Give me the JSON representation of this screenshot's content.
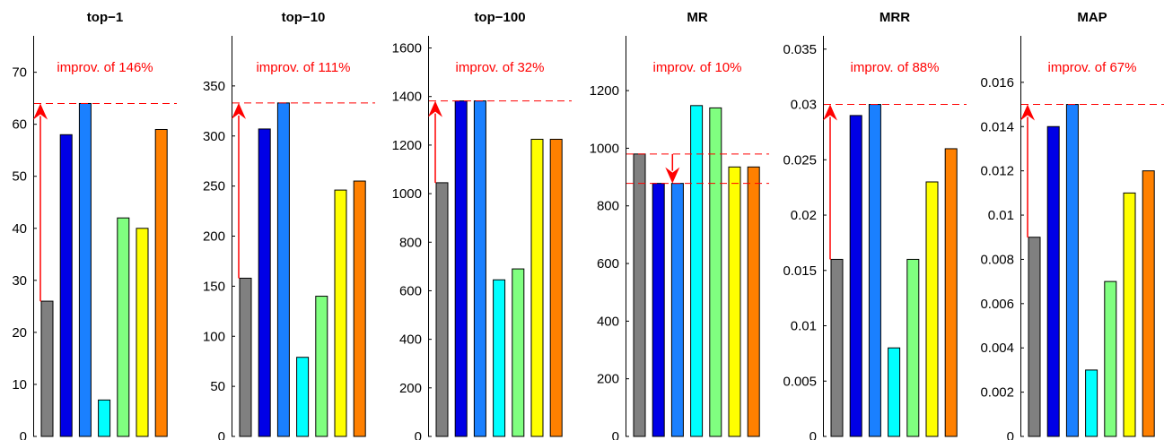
{
  "colors": {
    "bars": [
      "#808080",
      "#0000e6",
      "#1a80ff",
      "#00ffff",
      "#80ff80",
      "#ffff00",
      "#ff8000"
    ],
    "annotation": "#ff0000"
  },
  "chart_data": [
    {
      "type": "bar",
      "title": "top−1",
      "values": [
        26,
        58,
        64,
        7,
        42,
        40,
        59
      ],
      "ylim": [
        0,
        77
      ],
      "yticks": [
        0,
        10,
        20,
        30,
        40,
        50,
        60,
        70
      ],
      "ytick_labels": [
        "0",
        "10",
        "20",
        "30",
        "40",
        "50",
        "60",
        "70"
      ],
      "annotation": "improv. of 146%",
      "reference_lines": [
        64
      ],
      "arrow": {
        "from": 26,
        "to": 64,
        "bar": 0
      }
    },
    {
      "type": "bar",
      "title": "top−10",
      "values": [
        158,
        307,
        333,
        79,
        140,
        246,
        255
      ],
      "ylim": [
        0,
        400
      ],
      "yticks": [
        0,
        50,
        100,
        150,
        200,
        250,
        300,
        350
      ],
      "ytick_labels": [
        "0",
        "50",
        "100",
        "150",
        "200",
        "250",
        "300",
        "350"
      ],
      "annotation": "improv. of 111%",
      "reference_lines": [
        333
      ],
      "arrow": {
        "from": 158,
        "to": 333,
        "bar": 0
      }
    },
    {
      "type": "bar",
      "title": "top−100",
      "values": [
        1045,
        1382,
        1382,
        645,
        690,
        1224,
        1224
      ],
      "ylim": [
        0,
        1650
      ],
      "yticks": [
        0,
        200,
        400,
        600,
        800,
        1000,
        1200,
        1400,
        1600
      ],
      "ytick_labels": [
        "0",
        "200",
        "400",
        "600",
        "800",
        "1000",
        "1200",
        "1400",
        "1600"
      ],
      "annotation": "improv. of 32%",
      "reference_lines": [
        1382
      ],
      "arrow": {
        "from": 1045,
        "to": 1382,
        "bar": 0
      }
    },
    {
      "type": "bar",
      "title": "MR",
      "values": [
        980,
        878,
        878,
        1148,
        1140,
        935,
        935
      ],
      "ylim": [
        0,
        1390
      ],
      "yticks": [
        0,
        200,
        400,
        600,
        800,
        1000,
        1200
      ],
      "ytick_labels": [
        "0",
        "200",
        "400",
        "600",
        "800",
        "1000",
        "1200"
      ],
      "annotation": "improv. of 10%",
      "reference_lines": [
        980,
        878
      ],
      "arrow": {
        "from": 980,
        "to": 878,
        "bar": 1.5
      }
    },
    {
      "type": "bar",
      "title": "MRR",
      "values": [
        0.016,
        0.029,
        0.03,
        0.008,
        0.016,
        0.023,
        0.026
      ],
      "ylim": [
        0,
        0.0362
      ],
      "yticks": [
        0,
        0.005,
        0.01,
        0.015,
        0.02,
        0.025,
        0.03,
        0.035
      ],
      "ytick_labels": [
        "0",
        "0.005",
        "0.01",
        "0.015",
        "0.02",
        "0.025",
        "0.03",
        "0.035"
      ],
      "annotation": "improv. of 88%",
      "reference_lines": [
        0.03
      ],
      "arrow": {
        "from": 0.016,
        "to": 0.03,
        "bar": 0
      }
    },
    {
      "type": "bar",
      "title": "MAP",
      "values": [
        0.009,
        0.014,
        0.015,
        0.003,
        0.007,
        0.011,
        0.012
      ],
      "ylim": [
        0,
        0.0181
      ],
      "yticks": [
        0,
        0.002,
        0.004,
        0.006,
        0.008,
        0.01,
        0.012,
        0.014,
        0.016
      ],
      "ytick_labels": [
        "0",
        "0.002",
        "0.004",
        "0.006",
        "0.008",
        "0.01",
        "0.012",
        "0.014",
        "0.016"
      ],
      "annotation": "improv. of 67%",
      "reference_lines": [
        0.015
      ],
      "arrow": {
        "from": 0.009,
        "to": 0.015,
        "bar": 0
      }
    }
  ]
}
